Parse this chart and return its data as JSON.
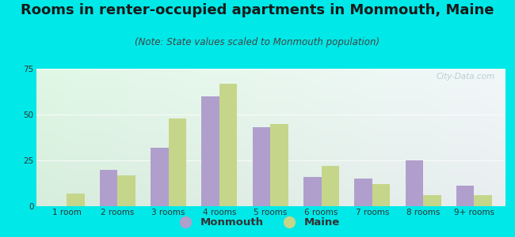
{
  "title": "Rooms in renter-occupied apartments in Monmouth, Maine",
  "subtitle": "(Note: State values scaled to Monmouth population)",
  "categories": [
    "1 room",
    "2 rooms",
    "3 rooms",
    "4 rooms",
    "5 rooms",
    "6 rooms",
    "7 rooms",
    "8 rooms",
    "9+ rooms"
  ],
  "monmouth": [
    0,
    20,
    32,
    60,
    43,
    16,
    15,
    25,
    11
  ],
  "maine": [
    7,
    17,
    48,
    67,
    45,
    22,
    12,
    6,
    6
  ],
  "monmouth_color": "#b09fcc",
  "maine_color": "#c5d68a",
  "ylim": [
    0,
    75
  ],
  "yticks": [
    0,
    25,
    50,
    75
  ],
  "bar_width": 0.35,
  "title_fontsize": 13,
  "subtitle_fontsize": 8.5,
  "tick_fontsize": 7.5,
  "legend_fontsize": 9.5,
  "watermark": "City-Data.com",
  "fig_bg_color": "#00e8e8"
}
